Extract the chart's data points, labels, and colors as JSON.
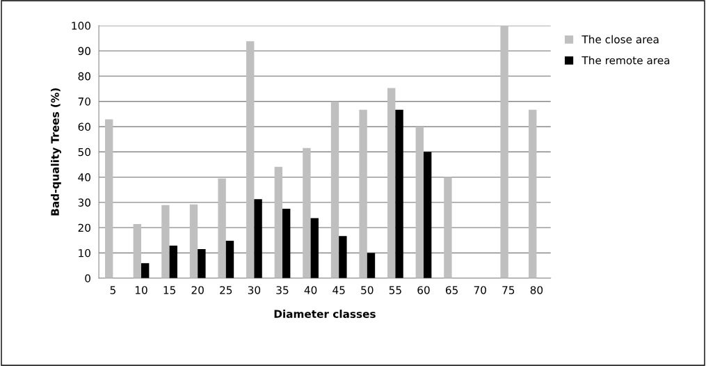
{
  "chart_data": {
    "type": "bar",
    "xlabel": "Diameter classes",
    "ylabel": "Bad-quality Trees (%)",
    "categories": [
      "5",
      "10",
      "15",
      "20",
      "25",
      "30",
      "35",
      "40",
      "45",
      "50",
      "55",
      "60",
      "65",
      "70",
      "75",
      "80"
    ],
    "series": [
      {
        "name": "The close area",
        "color": "#bfbfbf",
        "values": [
          62.9,
          21.4,
          28.9,
          29.2,
          39.5,
          93.8,
          44.1,
          51.5,
          70,
          66.7,
          75.3,
          60,
          40,
          null,
          100,
          66.7
        ]
      },
      {
        "name": "The remote area",
        "color": "#000000",
        "values": [
          null,
          5.9,
          12.9,
          11.5,
          14.8,
          31.3,
          27.5,
          23.8,
          16.7,
          10,
          66.7,
          50,
          null,
          null,
          null,
          null
        ]
      }
    ],
    "ylim": [
      0,
      100
    ],
    "yticks": [
      0,
      10,
      20,
      30,
      40,
      50,
      60,
      70,
      80,
      90,
      100
    ],
    "grid": "y",
    "legend": "top right"
  }
}
